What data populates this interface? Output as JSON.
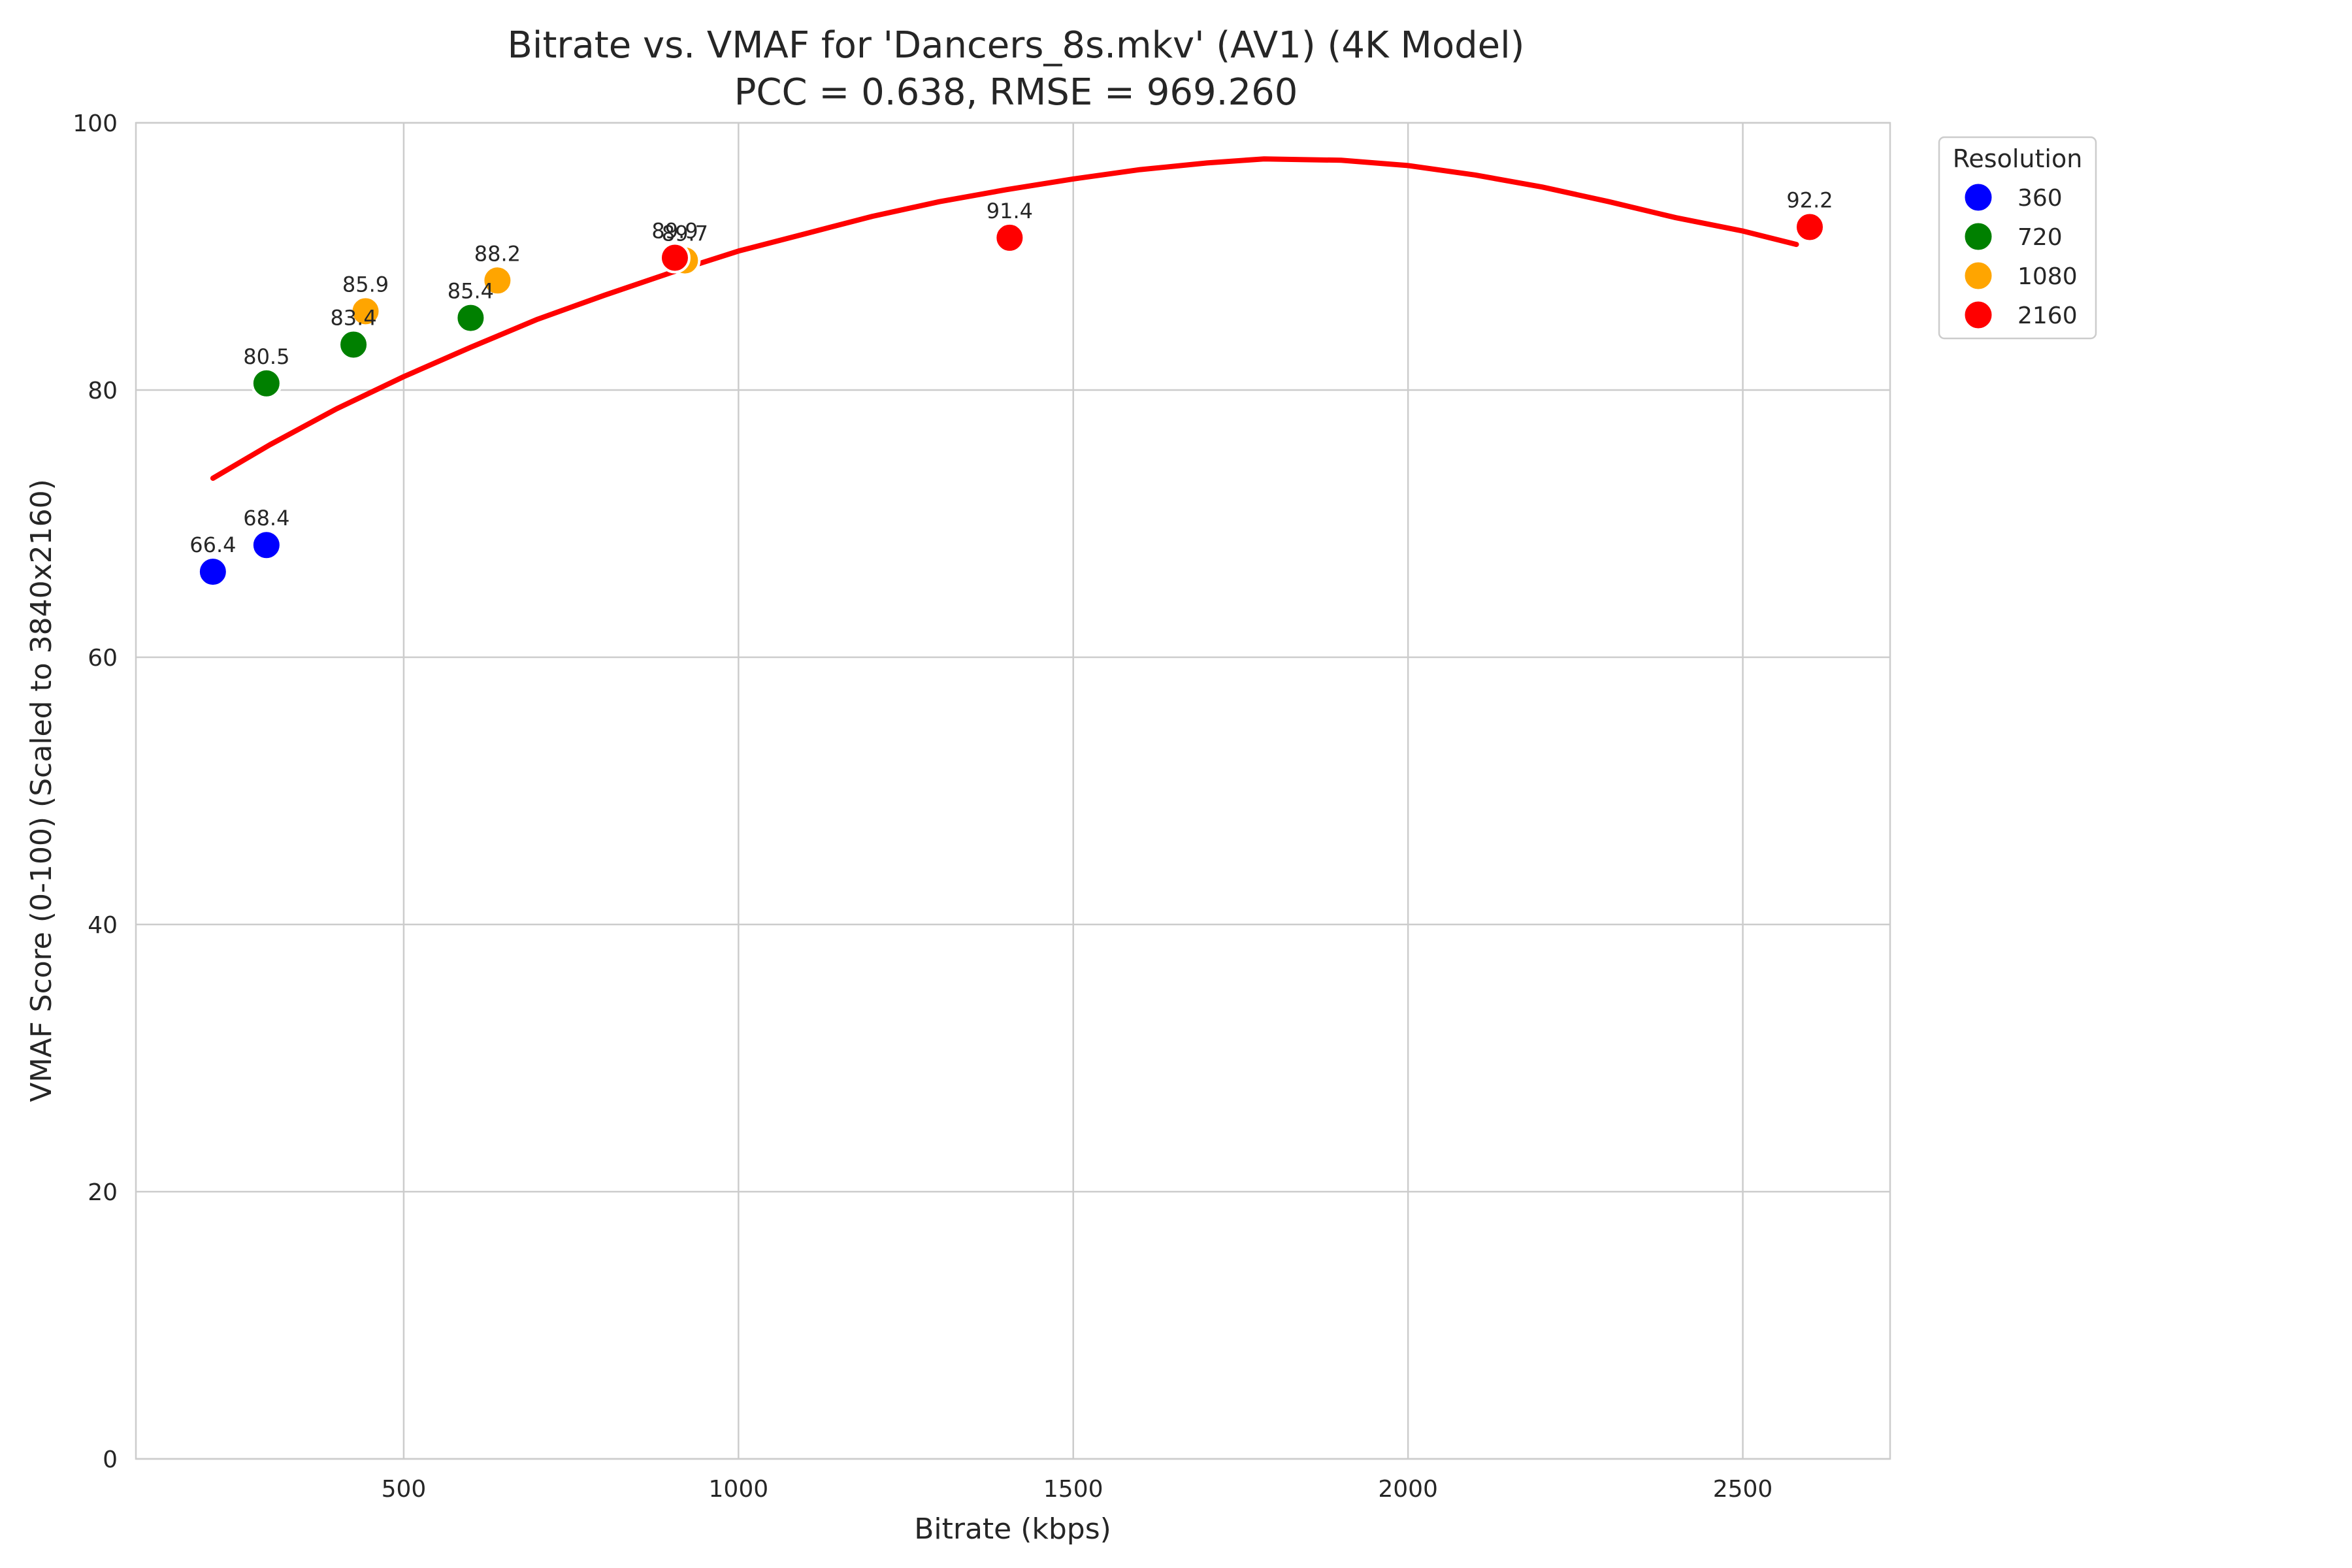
{
  "chart_data": {
    "type": "scatter",
    "title": "Bitrate vs. VMAF for 'Dancers_8s.mkv' (AV1) (4K Model)",
    "subtitle": "PCC = 0.638, RMSE = 969.260",
    "xlabel": "Bitrate (kbps)",
    "ylabel": "VMAF Score (0-100) (Scaled to 3840x2160)",
    "xlim": [
      100,
      2720
    ],
    "ylim": [
      0,
      100
    ],
    "xticks": [
      500,
      1000,
      1500,
      2000,
      2500
    ],
    "yticks": [
      0,
      20,
      40,
      60,
      80,
      100
    ],
    "grid": true,
    "legend": {
      "title": "Resolution",
      "placement": "outside-top-right"
    },
    "series": [
      {
        "name": "360",
        "color": "#0000ff",
        "points": [
          {
            "x": 215,
            "y": 66.4,
            "label": "66.4"
          },
          {
            "x": 295,
            "y": 68.4,
            "label": "68.4"
          }
        ]
      },
      {
        "name": "720",
        "color": "#008000",
        "points": [
          {
            "x": 295,
            "y": 80.5,
            "label": "80.5"
          },
          {
            "x": 425,
            "y": 83.4,
            "label": "83.4"
          },
          {
            "x": 600,
            "y": 85.4,
            "label": "85.4"
          }
        ]
      },
      {
        "name": "1080",
        "color": "#ffa500",
        "points": [
          {
            "x": 443,
            "y": 85.9,
            "label": "85.9"
          },
          {
            "x": 640,
            "y": 88.2,
            "label": "88.2"
          },
          {
            "x": 920,
            "y": 89.7,
            "label": "89.7"
          }
        ]
      },
      {
        "name": "2160",
        "color": "#ff0000",
        "points": [
          {
            "x": 905,
            "y": 89.9,
            "label": "89.9"
          },
          {
            "x": 1405,
            "y": 91.4,
            "label": "91.4"
          },
          {
            "x": 2600,
            "y": 92.2,
            "label": "92.2"
          }
        ]
      }
    ],
    "fit_curve": {
      "color": "#ff0000",
      "points": [
        [
          215,
          73.4
        ],
        [
          300,
          75.9
        ],
        [
          400,
          78.6
        ],
        [
          500,
          81.0
        ],
        [
          600,
          83.2
        ],
        [
          700,
          85.3
        ],
        [
          800,
          87.1
        ],
        [
          900,
          88.8
        ],
        [
          1000,
          90.4
        ],
        [
          1100,
          91.7
        ],
        [
          1200,
          93.0
        ],
        [
          1300,
          94.1
        ],
        [
          1400,
          95.0
        ],
        [
          1500,
          95.8
        ],
        [
          1600,
          96.5
        ],
        [
          1700,
          97.0
        ],
        [
          1785,
          97.3
        ],
        [
          1900,
          97.2
        ],
        [
          2000,
          96.8
        ],
        [
          2100,
          96.1
        ],
        [
          2200,
          95.2
        ],
        [
          2300,
          94.1
        ],
        [
          2400,
          92.9
        ],
        [
          2500,
          91.9
        ],
        [
          2580,
          90.9
        ]
      ]
    }
  }
}
